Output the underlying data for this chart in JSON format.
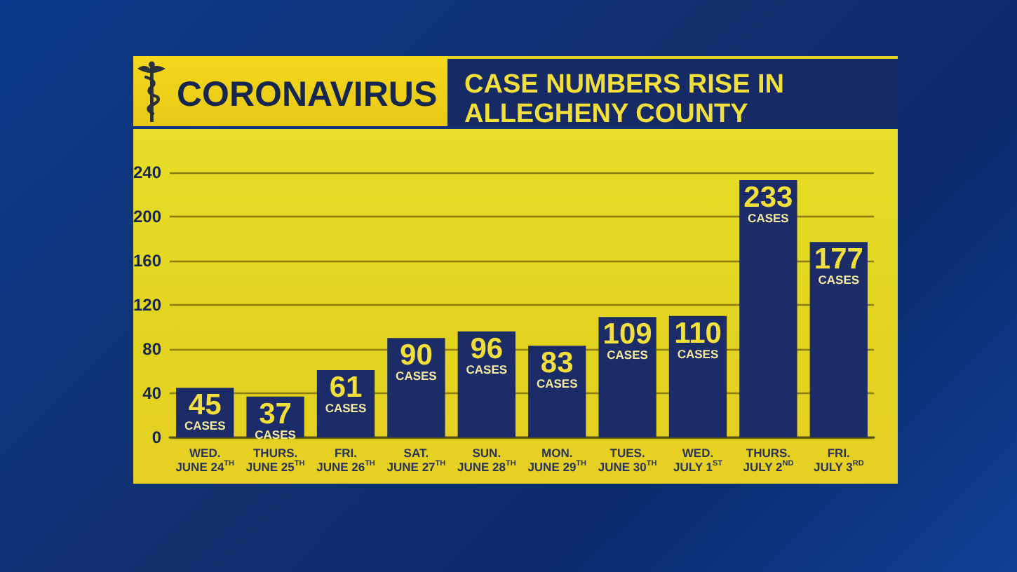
{
  "chart_data": {
    "type": "bar",
    "title": "CORONAVIRUS",
    "subtitle": "CASE NUMBERS RISE IN\nALLEGHENY COUNTY",
    "categories": [
      "WED.\nJUNE 24$^{TH}$",
      "THURS.\nJUNE 25$^{TH}$",
      "FRI.\nJUNE 26$^{TH}$",
      "SAT.\nJUNE 27$^{TH}$",
      "SUN.\nJUNE 28$^{TH}$",
      "MON.\nJUNE 29$^{TH}$",
      "TUES.\nJUNE 30$^{TH}$",
      "WED.\nJULY 1$^{ST}$",
      "THURS.\nJULY 2$^{ND}$",
      "FRI.\nJULY 3$^{RD}$"
    ],
    "values": [
      45,
      37,
      61,
      90,
      96,
      83,
      109,
      110,
      233,
      177
    ],
    "value_labels": [
      "45\nCASES",
      "37\nCASES",
      "61\nCASES",
      "90\nCASES",
      "96\nCASES",
      "83\nCASES",
      "109\nCASES",
      "110\nCASES",
      "233\nCASES",
      "177\nCASES"
    ],
    "color": "#1c2c68",
    "ylim": [
      0,
      240
    ],
    "yticks": [
      0,
      40,
      80,
      120,
      160,
      200,
      240
    ],
    "grid": "y"
  }
}
